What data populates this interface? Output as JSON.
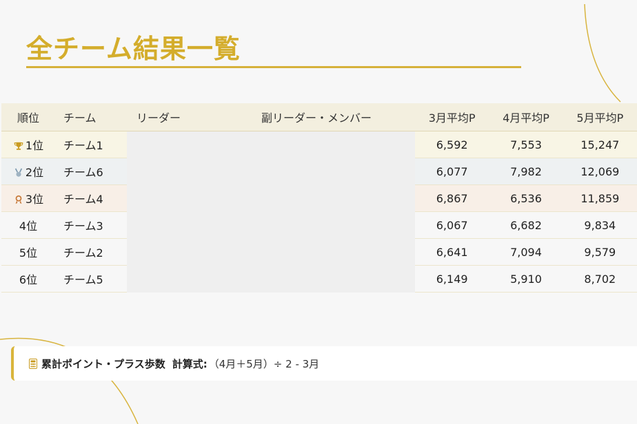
{
  "title": "全チーム結果一覧",
  "table": {
    "headers": {
      "rank": "順位",
      "team": "チーム",
      "leader": "リーダー",
      "members": "副リーダー・メンバー",
      "mar": "3月平均P",
      "apr": "4月平均P",
      "may": "5月平均P"
    },
    "rows": [
      {
        "rank": "1位",
        "icon": "trophy-icon",
        "team": "チーム1",
        "mar": "6,592",
        "apr": "7,553",
        "may": "15,247"
      },
      {
        "rank": "2位",
        "icon": "silver-medal-icon",
        "team": "チーム6",
        "mar": "6,077",
        "apr": "7,982",
        "may": "12,069"
      },
      {
        "rank": "3位",
        "icon": "bronze-medal-icon",
        "team": "チーム4",
        "mar": "6,867",
        "apr": "6,536",
        "may": "11,859"
      },
      {
        "rank": "4位",
        "team": "チーム3",
        "mar": "6,067",
        "apr": "6,682",
        "may": "9,834"
      },
      {
        "rank": "5位",
        "team": "チーム2",
        "mar": "6,641",
        "apr": "7,094",
        "may": "9,579"
      },
      {
        "rank": "6位",
        "team": "チーム5",
        "mar": "6,149",
        "apr": "5,910",
        "may": "8,702"
      }
    ]
  },
  "footer": {
    "icon": "calculator-icon",
    "label": "累計ポイント・プラス歩数",
    "formula_label": "計算式:",
    "formula": "（4月＋5月）÷ 2 - 3月"
  },
  "colors": {
    "accent_gold": "#d4ad2c",
    "header_bg": "#f3efdf"
  }
}
